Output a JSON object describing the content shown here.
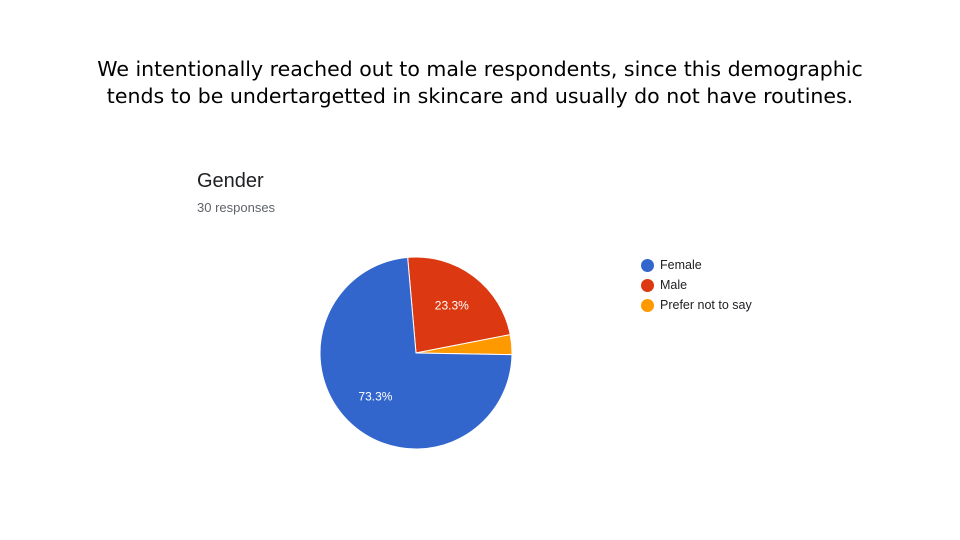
{
  "slide": {
    "heading_lines": [
      "We intentionally reached out to male respondents, since this demographic",
      "tends to be undertargetted in skincare and usually do not have routines."
    ]
  },
  "chart_data": {
    "type": "pie",
    "title": "Gender",
    "subtitle": "30 responses",
    "categories": [
      "Female",
      "Male",
      "Prefer not to say"
    ],
    "values": [
      22,
      7,
      1
    ],
    "percent_labels": [
      "73.3%",
      "23.3%",
      ""
    ],
    "colors": [
      "#3366cc",
      "#dc3912",
      "#ff9900"
    ],
    "legend_position": "right"
  }
}
